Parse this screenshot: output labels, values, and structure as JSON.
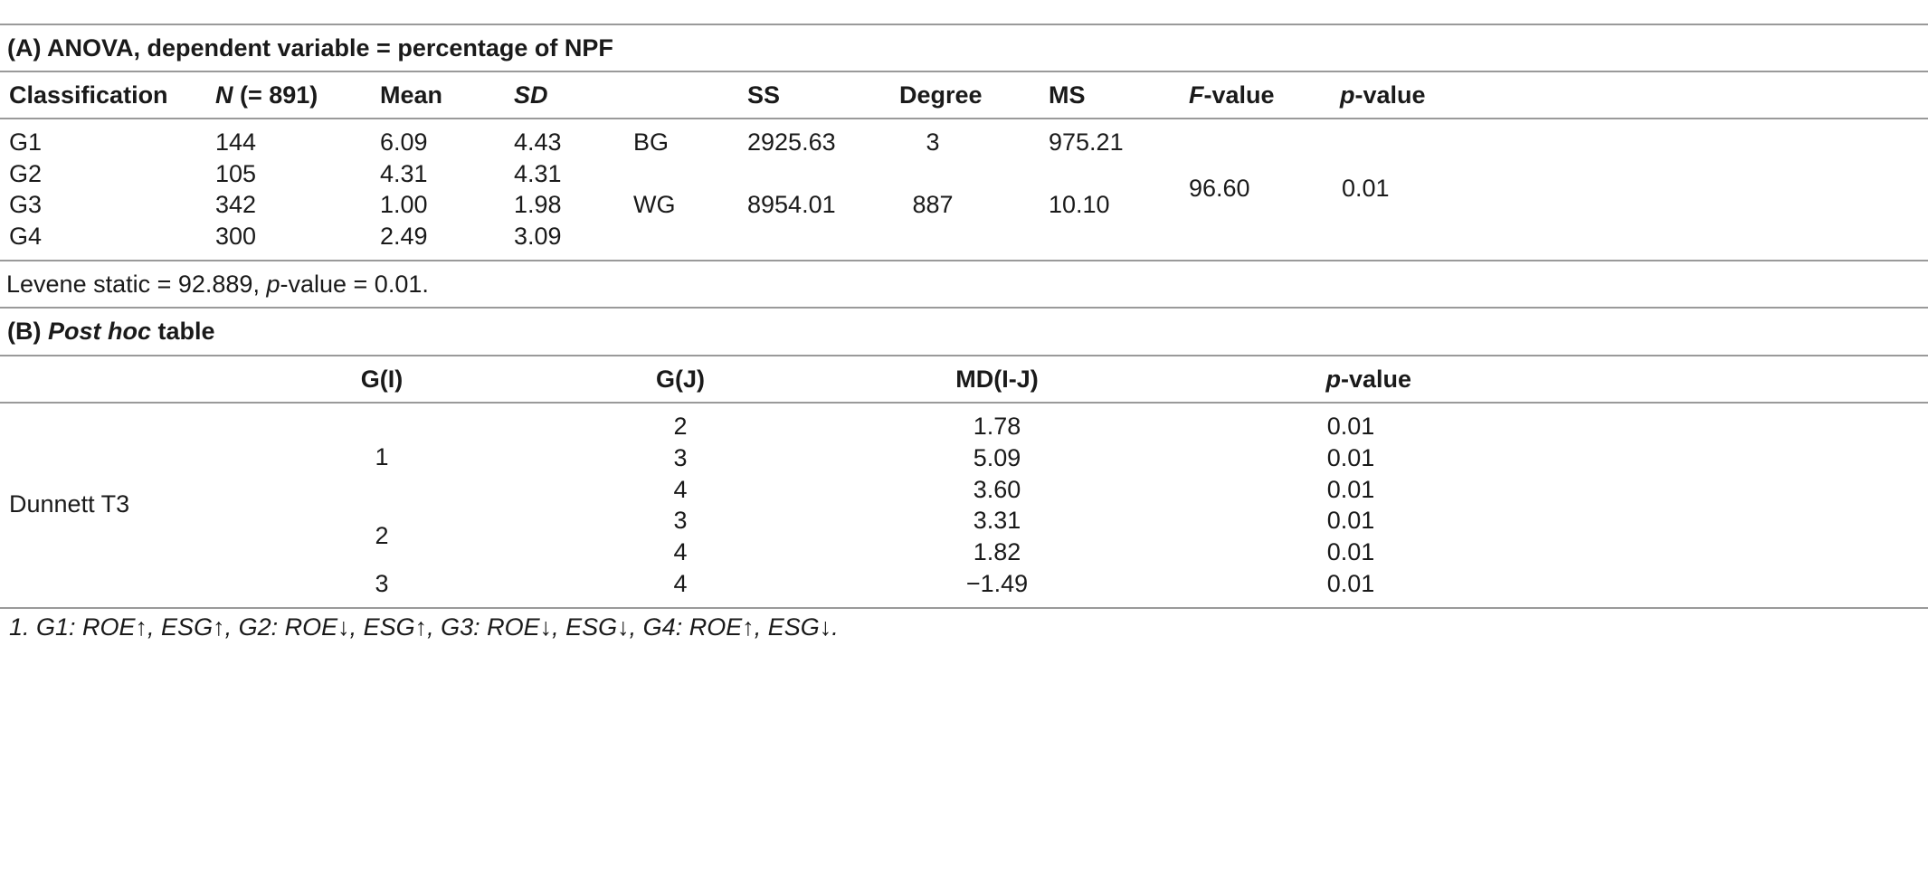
{
  "top_cut_text": "",
  "section_a": {
    "title": "(A) ANOVA, dependent variable = percentage of NPF",
    "headers": {
      "classification": "Classification",
      "n_italic": "N",
      "n_rest": " (= 891)",
      "mean": "Mean",
      "sd": "SD",
      "ss": "SS",
      "degree": "Degree",
      "ms": "MS",
      "f_italic": "F",
      "f_rest": "-value",
      "p_italic": "p",
      "p_rest": "-value"
    },
    "rows": [
      {
        "group": "G1",
        "n": "144",
        "mean": "6.09",
        "sd": "4.43"
      },
      {
        "group": "G2",
        "n": "105",
        "mean": "4.31",
        "sd": "4.31"
      },
      {
        "group": "G3",
        "n": "342",
        "mean": "1.00",
        "sd": "1.98"
      },
      {
        "group": "G4",
        "n": "300",
        "mean": "2.49",
        "sd": "3.09"
      }
    ],
    "bg": {
      "label": "BG",
      "ss": "2925.63",
      "degree": "3",
      "ms": "975.21"
    },
    "wg": {
      "label": "WG",
      "ss": "8954.01",
      "degree": "887",
      "ms": "10.10"
    },
    "f_value": "96.60",
    "p_value": "0.01",
    "levene": {
      "prefix": "Levene static = 92.889, ",
      "p_italic": "p",
      "suffix": "-value = 0.01."
    }
  },
  "section_b": {
    "title_prefix": "(B) ",
    "title_italic": "Post hoc",
    "title_suffix": " table",
    "headers": {
      "gi": "G(I)",
      "gj": "G(J)",
      "md": "MD(I-J)",
      "p_italic": "p",
      "p_rest": "-value"
    },
    "method": "Dunnett T3",
    "gi_labels": [
      "1",
      "2",
      "3"
    ],
    "rows": [
      {
        "gj": "2",
        "md": "1.78",
        "p": "0.01"
      },
      {
        "gj": "3",
        "md": "5.09",
        "p": "0.01"
      },
      {
        "gj": "4",
        "md": "3.60",
        "p": "0.01"
      },
      {
        "gj": "3",
        "md": "3.31",
        "p": "0.01"
      },
      {
        "gj": "4",
        "md": "1.82",
        "p": "0.01"
      },
      {
        "gj": "4",
        "md": "−1.49",
        "p": "0.01"
      }
    ]
  },
  "footnote": "1. G1: ROE↑, ESG↑, G2: ROE↓, ESG↑, G3: ROE↓, ESG↓, G4: ROE↑, ESG↓."
}
